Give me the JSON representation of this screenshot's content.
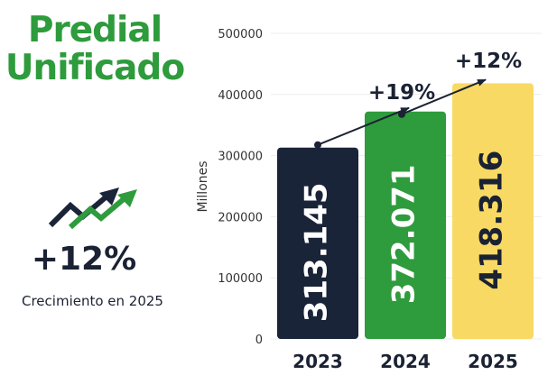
{
  "header": {
    "title_line1": "Predial",
    "title_line2": "Unificado"
  },
  "kpi": {
    "value": "+12%",
    "caption": "Crecimiento en 2025",
    "icon": "growth-arrows-icon"
  },
  "colors": {
    "title_green": "#2e9b3c",
    "bar_2023": "#1a2438",
    "bar_2024": "#2e9b3c",
    "bar_2025": "#f8d964",
    "value_on_dark": "#ffffff",
    "value_on_light": "#1a2233",
    "text_dark": "#1a2233"
  },
  "chart_data": {
    "type": "bar",
    "categories": [
      "2023",
      "2024",
      "2025"
    ],
    "values": [
      313145,
      372071,
      418316
    ],
    "value_labels": [
      "313.145",
      "372.071",
      "418.316"
    ],
    "bar_colors": [
      "#1a2438",
      "#2e9b3c",
      "#f8d964"
    ],
    "value_label_colors": [
      "#ffffff",
      "#ffffff",
      "#1a2233"
    ],
    "ylabel": "Millones",
    "ylim": [
      0,
      500000
    ],
    "yticks": [
      0,
      100000,
      200000,
      300000,
      400000,
      500000
    ],
    "ytick_labels": [
      "0",
      "100000",
      "200000",
      "300000",
      "400000",
      "500000"
    ],
    "grid": true,
    "growth_annotations": [
      {
        "from": "2023",
        "to": "2024",
        "label": "+19%"
      },
      {
        "from": "2024",
        "to": "2025",
        "label": "+12%"
      }
    ]
  }
}
